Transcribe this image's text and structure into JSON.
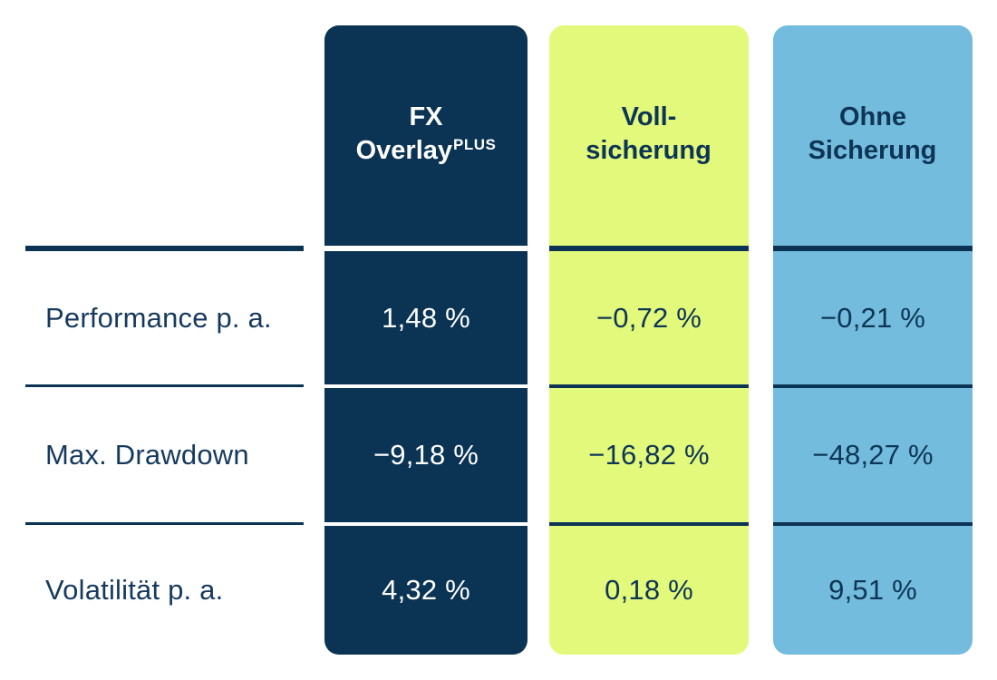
{
  "table": {
    "row_labels": [
      "Performance p. a.",
      "Max. Drawdown",
      "Volatilität p. a."
    ],
    "columns": [
      {
        "id": "fx-overlay-plus",
        "header_line1": "FX",
        "header_line2": "Overlay",
        "header_superscript": "PLUS",
        "bg_color": "#0b3354",
        "text_color": "#ffffff",
        "values": [
          "1,48 %",
          "−9,18 %",
          "4,32 %"
        ]
      },
      {
        "id": "vollsicherung",
        "header_line1": "Voll-",
        "header_line2": "sicherung",
        "header_superscript": "",
        "bg_color": "#e3f97c",
        "text_color": "#0d3556",
        "values": [
          "−0,72 %",
          "−16,82 %",
          "0,18 %"
        ]
      },
      {
        "id": "ohne-sicherung",
        "header_line1": "Ohne",
        "header_line2": "Sicherung",
        "header_superscript": "",
        "bg_color": "#73bcdd",
        "text_color": "#0d3556",
        "values": [
          "−0,21 %",
          "−48,27 %",
          "9,51 %"
        ]
      }
    ],
    "colors": {
      "separator_line": "#0b3354",
      "label_text": "#163a5e",
      "background": "#ffffff"
    }
  },
  "chart_data": {
    "type": "table",
    "columns": [
      "FX OverlayPLUS",
      "Vollsicherung",
      "Ohne Sicherung"
    ],
    "rows": [
      {
        "label": "Performance p. a.",
        "values_percent": [
          1.48,
          -0.72,
          -0.21
        ]
      },
      {
        "label": "Max. Drawdown",
        "values_percent": [
          -9.18,
          -16.82,
          -48.27
        ]
      },
      {
        "label": "Volatilität p. a.",
        "values_percent": [
          4.32,
          0.18,
          9.51
        ]
      }
    ]
  }
}
